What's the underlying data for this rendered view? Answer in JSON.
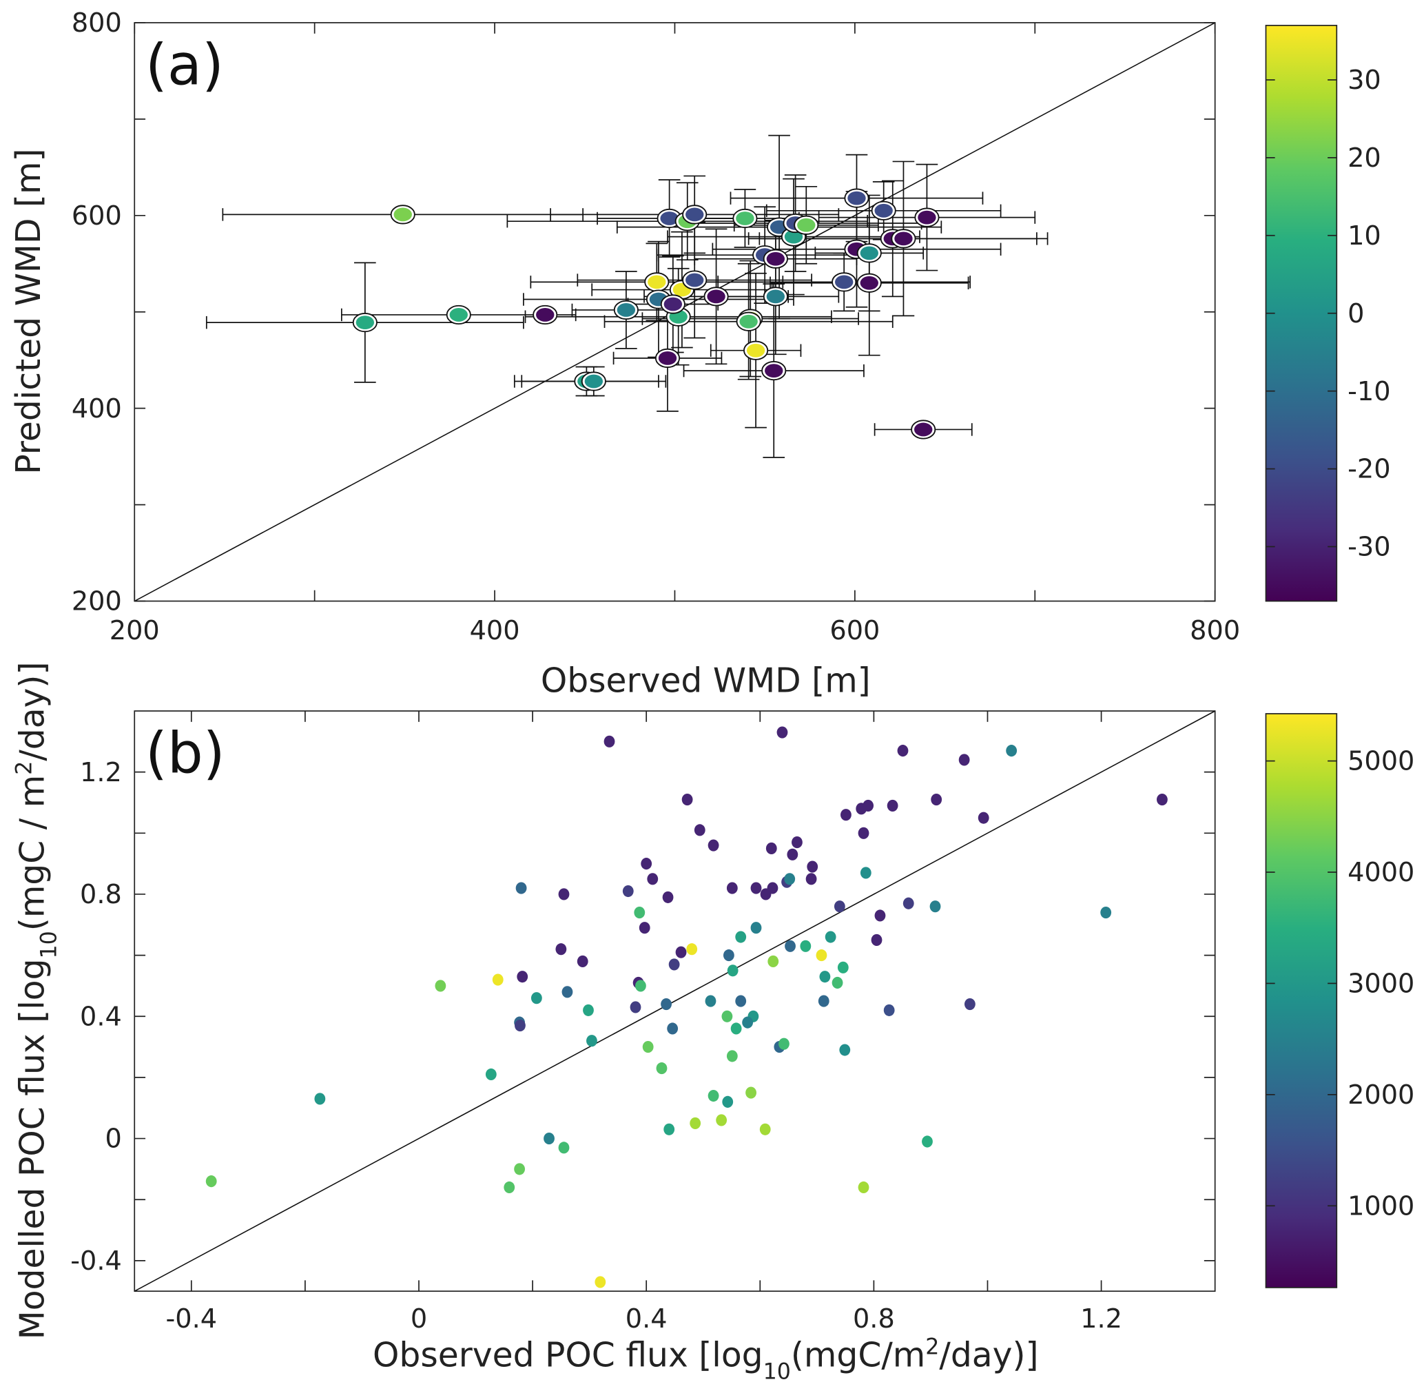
{
  "chart_data": [
    {
      "panel_label": "(a)",
      "type": "scatter",
      "xlabel": "Observed WMD [m]",
      "ylabel": "Predicted WMD [m]",
      "xlim": [
        200,
        800
      ],
      "ylim": [
        200,
        800
      ],
      "xticks": [
        200,
        300,
        400,
        500,
        600,
        700,
        800
      ],
      "xticklabels": [
        "200",
        "",
        "400",
        "",
        "600",
        "",
        "800"
      ],
      "yticks": [
        200,
        300,
        400,
        500,
        600,
        700,
        800
      ],
      "yticklabels": [
        "200",
        "",
        "400",
        "",
        "600",
        "",
        "800"
      ],
      "reference_line": "1:1",
      "colorbar": {
        "lim": [
          -37,
          37
        ],
        "ticks": [
          30,
          20,
          10,
          0,
          -10,
          -20,
          -30
        ],
        "ticklabels": [
          "30",
          "20",
          "10",
          "0",
          "-10",
          "-20",
          "-30"
        ]
      },
      "columns": [
        "x",
        "y",
        "color",
        "xerr",
        "yerr"
      ],
      "points": [
        [
          349,
          601,
          22,
          100,
          0
        ],
        [
          328,
          489,
          8,
          88,
          62
        ],
        [
          380,
          497,
          10,
          65,
          0
        ],
        [
          428,
          497,
          -35,
          0,
          0
        ],
        [
          473,
          502,
          -5,
          30,
          40
        ],
        [
          451,
          428,
          5,
          40,
          15
        ],
        [
          455,
          428,
          0,
          40,
          15
        ],
        [
          490,
          531,
          35,
          70,
          40
        ],
        [
          497,
          597,
          -20,
          40,
          40
        ],
        [
          491,
          513,
          -10,
          75,
          60
        ],
        [
          502,
          495,
          10,
          85,
          50
        ],
        [
          496,
          452,
          -35,
          30,
          55
        ],
        [
          504,
          523,
          35,
          50,
          60
        ],
        [
          507,
          594,
          20,
          100,
          40
        ],
        [
          511,
          601,
          -20,
          80,
          40
        ],
        [
          511,
          533,
          -20,
          65,
          60
        ],
        [
          499,
          508,
          -30,
          25,
          50
        ],
        [
          523,
          516,
          -35,
          40,
          70
        ],
        [
          539,
          597,
          15,
          30,
          30
        ],
        [
          542,
          493,
          30,
          60,
          60
        ],
        [
          541,
          490,
          15,
          80,
          60
        ],
        [
          545,
          460,
          35,
          25,
          80
        ],
        [
          555,
          439,
          -35,
          50,
          90
        ],
        [
          556,
          516,
          -5,
          35,
          60
        ],
        [
          550,
          559,
          -20,
          60,
          50
        ],
        [
          556,
          555,
          -35,
          45,
          40
        ],
        [
          558,
          588,
          -15,
          90,
          95
        ],
        [
          566,
          578,
          5,
          70,
          60
        ],
        [
          567,
          592,
          -20,
          70,
          50
        ],
        [
          573,
          590,
          20,
          40,
          40
        ],
        [
          594,
          531,
          -20,
          70,
          30
        ],
        [
          601,
          618,
          -20,
          70,
          45
        ],
        [
          601,
          565,
          -35,
          80,
          60
        ],
        [
          608,
          530,
          -35,
          55,
          75
        ],
        [
          608,
          561,
          0,
          30,
          60
        ],
        [
          616,
          605,
          -20,
          65,
          30
        ],
        [
          621,
          576,
          -35,
          80,
          60
        ],
        [
          627,
          576,
          -35,
          80,
          80
        ],
        [
          640,
          598,
          -35,
          60,
          55
        ],
        [
          638,
          378,
          -35,
          27,
          0
        ]
      ]
    },
    {
      "panel_label": "(b)",
      "type": "scatter",
      "xlabel_parts": [
        "Observed POC flux [log",
        "10",
        "(mgC/m",
        "2",
        "/day)]"
      ],
      "ylabel_parts": [
        "Modelled POC flux [log",
        "10",
        "(mgC / m",
        "2",
        "/day)]"
      ],
      "xlim": [
        -0.5,
        1.4
      ],
      "ylim": [
        -0.5,
        1.4
      ],
      "xticks": [
        -0.4,
        -0.2,
        0,
        0.2,
        0.4,
        0.6,
        0.8,
        1.0,
        1.2
      ],
      "xticklabels": [
        "-0.4",
        "",
        "0",
        "",
        "0.4",
        "",
        "0.8",
        "",
        "1.2"
      ],
      "yticks": [
        -0.4,
        -0.2,
        0,
        0.2,
        0.4,
        0.6,
        0.8,
        1.0,
        1.2
      ],
      "yticklabels": [
        "-0.4",
        "",
        "0",
        "",
        "0.4",
        "",
        "0.8",
        "",
        "1.2"
      ],
      "reference_line": "1:1",
      "colorbar": {
        "lim": [
          265,
          5425
        ],
        "ticks": [
          5000,
          4000,
          3000,
          2000,
          1000
        ],
        "ticklabels": [
          "5000",
          "4000",
          "3000",
          "2000",
          "1000"
        ]
      },
      "columns": [
        "x",
        "y",
        "color"
      ],
      "points": [
        [
          0.335,
          1.3,
          800
        ],
        [
          0.639,
          1.33,
          800
        ],
        [
          0.851,
          1.27,
          800
        ],
        [
          1.042,
          1.27,
          2500
        ],
        [
          0.959,
          1.24,
          800
        ],
        [
          0.472,
          1.11,
          800
        ],
        [
          0.91,
          1.11,
          800
        ],
        [
          1.307,
          1.11,
          800
        ],
        [
          0.79,
          1.09,
          800
        ],
        [
          0.778,
          1.08,
          800
        ],
        [
          0.833,
          1.09,
          800
        ],
        [
          0.751,
          1.06,
          800
        ],
        [
          0.993,
          1.05,
          800
        ],
        [
          0.494,
          1.01,
          800
        ],
        [
          0.782,
          1.0,
          800
        ],
        [
          0.518,
          0.96,
          800
        ],
        [
          0.665,
          0.97,
          800
        ],
        [
          0.62,
          0.95,
          800
        ],
        [
          0.657,
          0.93,
          800
        ],
        [
          0.4,
          0.9,
          800
        ],
        [
          0.692,
          0.89,
          800
        ],
        [
          0.411,
          0.85,
          800
        ],
        [
          0.69,
          0.85,
          800
        ],
        [
          0.647,
          0.84,
          1200
        ],
        [
          0.652,
          0.85,
          2500
        ],
        [
          0.593,
          0.82,
          800
        ],
        [
          0.622,
          0.82,
          800
        ],
        [
          0.551,
          0.82,
          800
        ],
        [
          0.18,
          0.82,
          2000
        ],
        [
          0.368,
          0.81,
          1200
        ],
        [
          0.255,
          0.8,
          800
        ],
        [
          0.61,
          0.8,
          800
        ],
        [
          0.438,
          0.79,
          800
        ],
        [
          0.786,
          0.87,
          2800
        ],
        [
          0.861,
          0.77,
          1200
        ],
        [
          0.74,
          0.76,
          1200
        ],
        [
          0.908,
          0.76,
          2500
        ],
        [
          0.388,
          0.74,
          3800
        ],
        [
          1.208,
          0.74,
          2500
        ],
        [
          0.811,
          0.73,
          800
        ],
        [
          0.397,
          0.69,
          800
        ],
        [
          0.593,
          0.69,
          2500
        ],
        [
          0.566,
          0.66,
          3200
        ],
        [
          0.724,
          0.66,
          3000
        ],
        [
          0.805,
          0.65,
          800
        ],
        [
          0.653,
          0.63,
          2000
        ],
        [
          0.68,
          0.63,
          3500
        ],
        [
          0.25,
          0.62,
          800
        ],
        [
          0.48,
          0.62,
          5300
        ],
        [
          0.461,
          0.61,
          800
        ],
        [
          0.708,
          0.6,
          5300
        ],
        [
          0.545,
          0.6,
          2000
        ],
        [
          0.288,
          0.58,
          800
        ],
        [
          0.623,
          0.58,
          4500
        ],
        [
          0.449,
          0.57,
          1200
        ],
        [
          0.746,
          0.56,
          3500
        ],
        [
          0.552,
          0.55,
          3300
        ],
        [
          0.182,
          0.53,
          800
        ],
        [
          0.139,
          0.52,
          5300
        ],
        [
          0.714,
          0.53,
          3000
        ],
        [
          0.038,
          0.5,
          4300
        ],
        [
          0.386,
          0.51,
          800
        ],
        [
          0.39,
          0.5,
          3800
        ],
        [
          0.736,
          0.51,
          3800
        ],
        [
          0.261,
          0.48,
          2000
        ],
        [
          0.207,
          0.46,
          3000
        ],
        [
          0.513,
          0.45,
          2500
        ],
        [
          0.566,
          0.45,
          2000
        ],
        [
          0.435,
          0.44,
          2000
        ],
        [
          0.712,
          0.45,
          2000
        ],
        [
          0.969,
          0.44,
          1200
        ],
        [
          0.381,
          0.43,
          1200
        ],
        [
          0.827,
          0.42,
          1500
        ],
        [
          0.298,
          0.42,
          3300
        ],
        [
          0.588,
          0.4,
          3000
        ],
        [
          0.542,
          0.4,
          4000
        ],
        [
          0.578,
          0.38,
          2500
        ],
        [
          0.177,
          0.38,
          2000
        ],
        [
          0.178,
          0.37,
          1200
        ],
        [
          0.446,
          0.36,
          2000
        ],
        [
          0.558,
          0.36,
          3500
        ],
        [
          0.304,
          0.32,
          3000
        ],
        [
          0.634,
          0.3,
          2000
        ],
        [
          0.642,
          0.31,
          3800
        ],
        [
          0.403,
          0.3,
          4200
        ],
        [
          0.749,
          0.29,
          2800
        ],
        [
          0.551,
          0.27,
          4000
        ],
        [
          0.127,
          0.21,
          3300
        ],
        [
          0.427,
          0.23,
          4000
        ],
        [
          0.518,
          0.14,
          3800
        ],
        [
          0.584,
          0.15,
          4500
        ],
        [
          -0.174,
          0.13,
          3000
        ],
        [
          0.543,
          0.12,
          3000
        ],
        [
          0.44,
          0.03,
          3300
        ],
        [
          0.486,
          0.05,
          4700
        ],
        [
          0.532,
          0.06,
          4700
        ],
        [
          0.609,
          0.03,
          4700
        ],
        [
          0.229,
          0.0,
          2500
        ],
        [
          0.255,
          -0.03,
          3800
        ],
        [
          0.894,
          -0.01,
          3500
        ],
        [
          0.177,
          -0.1,
          4200
        ],
        [
          -0.365,
          -0.14,
          4200
        ],
        [
          0.159,
          -0.16,
          4000
        ],
        [
          0.782,
          -0.16,
          4700
        ],
        [
          0.319,
          -0.47,
          5300
        ]
      ]
    }
  ]
}
